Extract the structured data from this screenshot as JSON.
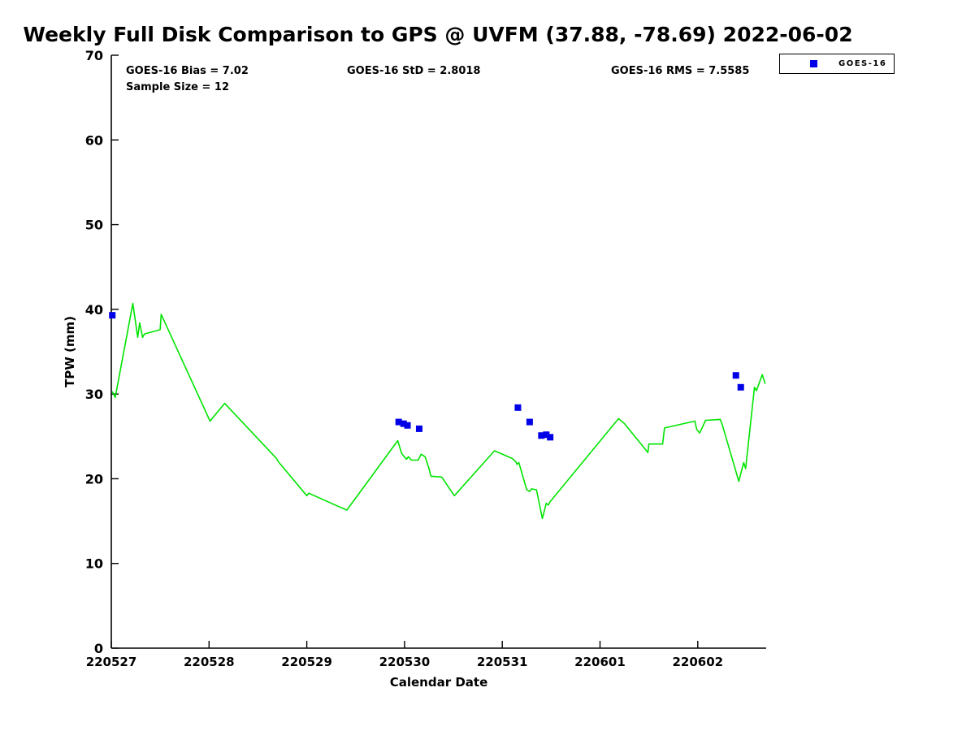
{
  "title": "Weekly Full Disk Comparison to GPS @ UVFM (37.88, -78.69) 2022-06-02",
  "stats": {
    "bias": "GOES-16 Bias = 7.02",
    "std": "GOES-16 StD = 2.8018",
    "rms": "GOES-16 RMS = 7.5585",
    "sample": "Sample Size = 12"
  },
  "legend": {
    "label": "GOES-16",
    "marker_color": "#0000e6",
    "position": "top-right-outside"
  },
  "colors": {
    "line_green": "#00e400",
    "marker_blue": "#0000e6",
    "axis": "#000000",
    "background": "#ffffff"
  },
  "chart_data": {
    "type": "line",
    "title": "Weekly Full Disk Comparison to GPS @ UVFM (37.88, -78.69) 2022-06-02",
    "xlabel": "Calendar Date",
    "ylabel": "TPW (mm)",
    "xlim": [
      0,
      6.7
    ],
    "ylim": [
      0,
      70
    ],
    "grid": false,
    "x_tick_labels": [
      "220527",
      "220528",
      "220529",
      "220530",
      "220531",
      "220601",
      "220602"
    ],
    "x_tick_positions": [
      0,
      1,
      2,
      3,
      4,
      5,
      6
    ],
    "y_ticks": [
      0,
      10,
      20,
      30,
      40,
      50,
      60,
      70
    ],
    "series": [
      {
        "name": "GPS",
        "type": "line",
        "color": "#00e400",
        "points": [
          [
            0.01,
            30.3
          ],
          [
            0.04,
            29.6
          ],
          [
            0.22,
            40.7
          ],
          [
            0.27,
            36.7
          ],
          [
            0.29,
            38.4
          ],
          [
            0.32,
            36.7
          ],
          [
            0.34,
            37.1
          ],
          [
            0.47,
            37.5
          ],
          [
            0.5,
            37.6
          ],
          [
            0.51,
            39.4
          ],
          [
            1.01,
            26.8
          ],
          [
            1.16,
            28.9
          ],
          [
            1.69,
            22.4
          ],
          [
            1.71,
            22.0
          ],
          [
            2.0,
            18.0
          ],
          [
            2.02,
            18.3
          ],
          [
            2.27,
            17.0
          ],
          [
            2.41,
            16.3
          ],
          [
            2.93,
            24.5
          ],
          [
            2.97,
            23.0
          ],
          [
            2.99,
            22.7
          ],
          [
            3.02,
            22.3
          ],
          [
            3.04,
            22.6
          ],
          [
            3.07,
            22.2
          ],
          [
            3.14,
            22.2
          ],
          [
            3.17,
            22.9
          ],
          [
            3.21,
            22.6
          ],
          [
            3.25,
            21.2
          ],
          [
            3.27,
            20.3
          ],
          [
            3.38,
            20.2
          ],
          [
            3.51,
            18.0
          ],
          [
            3.92,
            23.3
          ],
          [
            4.1,
            22.4
          ],
          [
            4.14,
            22.0
          ],
          [
            4.15,
            21.7
          ],
          [
            4.17,
            21.9
          ],
          [
            4.25,
            18.7
          ],
          [
            4.28,
            18.5
          ],
          [
            4.3,
            18.8
          ],
          [
            4.35,
            18.7
          ],
          [
            4.41,
            15.3
          ],
          [
            4.45,
            17.1
          ],
          [
            4.47,
            16.9
          ],
          [
            4.49,
            17.3
          ],
          [
            5.19,
            27.1
          ],
          [
            5.25,
            26.5
          ],
          [
            5.49,
            23.1
          ],
          [
            5.5,
            24.1
          ],
          [
            5.64,
            24.1
          ],
          [
            5.66,
            26.0
          ],
          [
            5.97,
            26.8
          ],
          [
            5.99,
            25.8
          ],
          [
            6.02,
            25.4
          ],
          [
            6.08,
            26.9
          ],
          [
            6.23,
            27.0
          ],
          [
            6.25,
            26.4
          ],
          [
            6.42,
            19.7
          ],
          [
            6.47,
            21.9
          ],
          [
            6.49,
            21.2
          ],
          [
            6.58,
            30.8
          ],
          [
            6.6,
            30.4
          ],
          [
            6.66,
            32.3
          ],
          [
            6.69,
            31.2
          ]
        ]
      },
      {
        "name": "GOES-16",
        "type": "scatter",
        "marker": "square",
        "color": "#0000e6",
        "points": [
          [
            0.01,
            39.3
          ],
          [
            2.94,
            26.7
          ],
          [
            2.99,
            26.5
          ],
          [
            3.03,
            26.3
          ],
          [
            3.15,
            25.9
          ],
          [
            4.16,
            28.4
          ],
          [
            4.28,
            26.7
          ],
          [
            4.4,
            25.1
          ],
          [
            4.45,
            25.2
          ],
          [
            4.49,
            24.9
          ],
          [
            6.39,
            32.2
          ],
          [
            6.44,
            30.8
          ]
        ]
      }
    ]
  }
}
